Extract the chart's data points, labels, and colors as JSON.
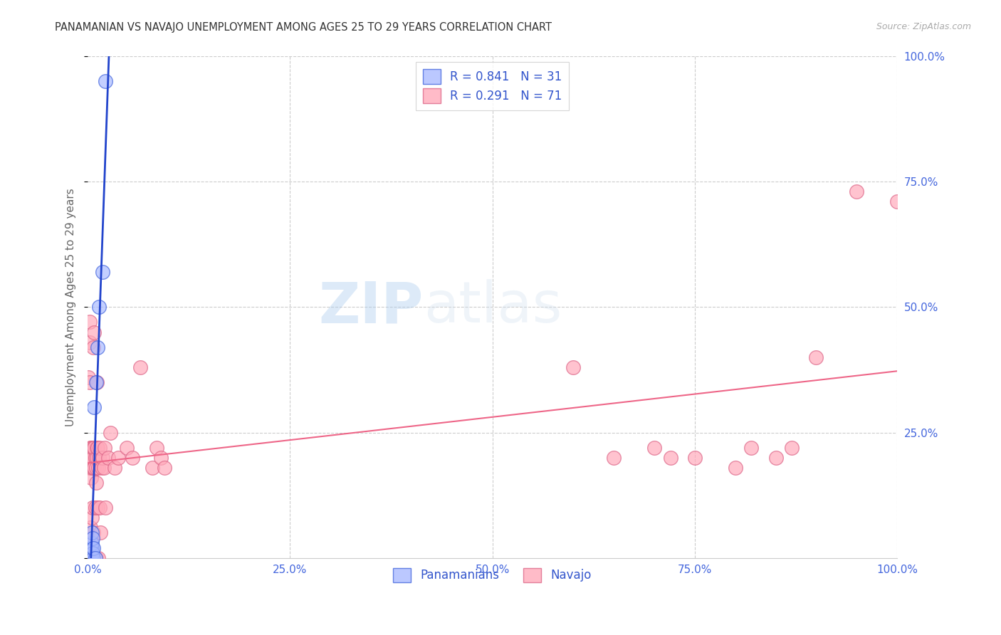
{
  "title": "PANAMANIAN VS NAVAJO UNEMPLOYMENT AMONG AGES 25 TO 29 YEARS CORRELATION CHART",
  "source": "Source: ZipAtlas.com",
  "ylabel": "Unemployment Among Ages 25 to 29 years",
  "xlim": [
    0.0,
    1.0
  ],
  "ylim": [
    0.0,
    1.0
  ],
  "xticks": [
    0.0,
    0.25,
    0.5,
    0.75,
    1.0
  ],
  "yticks": [
    0.0,
    0.25,
    0.5,
    0.75,
    1.0
  ],
  "xticklabels": [
    "0.0%",
    "25.0%",
    "50.0%",
    "75.0%",
    "100.0%"
  ],
  "yticklabels": [
    "",
    "25.0%",
    "50.0%",
    "75.0%",
    "100.0%"
  ],
  "background_color": "#ffffff",
  "grid_color": "#cccccc",
  "panama_color": "#aabbff",
  "panama_edge_color": "#4466dd",
  "navajo_color": "#ffaabb",
  "navajo_edge_color": "#dd6688",
  "panama_line_color": "#2244cc",
  "navajo_line_color": "#ee6688",
  "tick_color": "#4466dd",
  "title_color": "#333333",
  "source_color": "#aaaaaa",
  "ylabel_color": "#666666",
  "legend_text_color": "#3355cc",
  "panama_r": 0.841,
  "panama_n": 31,
  "navajo_r": 0.291,
  "navajo_n": 71,
  "watermark_zip": "ZIP",
  "watermark_atlas": "atlas",
  "panama_scatter_x": [
    0.002,
    0.002,
    0.002,
    0.003,
    0.003,
    0.003,
    0.003,
    0.003,
    0.004,
    0.004,
    0.004,
    0.004,
    0.004,
    0.005,
    0.005,
    0.005,
    0.005,
    0.005,
    0.005,
    0.006,
    0.006,
    0.006,
    0.007,
    0.007,
    0.008,
    0.009,
    0.01,
    0.012,
    0.014,
    0.018,
    0.022
  ],
  "panama_scatter_y": [
    0.0,
    0.0,
    0.01,
    0.0,
    0.0,
    0.0,
    0.01,
    0.02,
    0.0,
    0.0,
    0.0,
    0.01,
    0.02,
    0.0,
    0.0,
    0.01,
    0.02,
    0.03,
    0.05,
    0.0,
    0.01,
    0.04,
    0.0,
    0.02,
    0.3,
    0.0,
    0.35,
    0.42,
    0.5,
    0.57,
    0.95
  ],
  "navajo_scatter_x": [
    0.001,
    0.001,
    0.002,
    0.002,
    0.002,
    0.002,
    0.003,
    0.003,
    0.003,
    0.004,
    0.004,
    0.004,
    0.004,
    0.005,
    0.005,
    0.005,
    0.005,
    0.006,
    0.006,
    0.006,
    0.007,
    0.007,
    0.007,
    0.007,
    0.008,
    0.008,
    0.008,
    0.009,
    0.009,
    0.01,
    0.01,
    0.01,
    0.011,
    0.011,
    0.011,
    0.012,
    0.012,
    0.013,
    0.013,
    0.014,
    0.015,
    0.015,
    0.016,
    0.017,
    0.018,
    0.02,
    0.021,
    0.022,
    0.025,
    0.028,
    0.033,
    0.038,
    0.048,
    0.055,
    0.065,
    0.08,
    0.085,
    0.09,
    0.095,
    0.6,
    0.65,
    0.7,
    0.72,
    0.75,
    0.8,
    0.82,
    0.85,
    0.87,
    0.9,
    0.95,
    1.0
  ],
  "navajo_scatter_y": [
    0.2,
    0.36,
    0.18,
    0.35,
    0.43,
    0.47,
    0.06,
    0.22,
    0.18,
    0.16,
    0.2,
    0.04,
    0.22,
    0.08,
    0.18,
    0.2,
    0.22,
    0.0,
    0.1,
    0.2,
    0.05,
    0.18,
    0.22,
    0.42,
    0.18,
    0.22,
    0.45,
    0.1,
    0.2,
    0.0,
    0.15,
    0.18,
    0.2,
    0.22,
    0.35,
    0.1,
    0.22,
    0.0,
    0.18,
    0.2,
    0.1,
    0.22,
    0.05,
    0.18,
    0.2,
    0.18,
    0.22,
    0.1,
    0.2,
    0.25,
    0.18,
    0.2,
    0.22,
    0.2,
    0.38,
    0.18,
    0.22,
    0.2,
    0.18,
    0.38,
    0.2,
    0.22,
    0.2,
    0.2,
    0.18,
    0.22,
    0.2,
    0.22,
    0.4,
    0.73,
    0.71
  ]
}
